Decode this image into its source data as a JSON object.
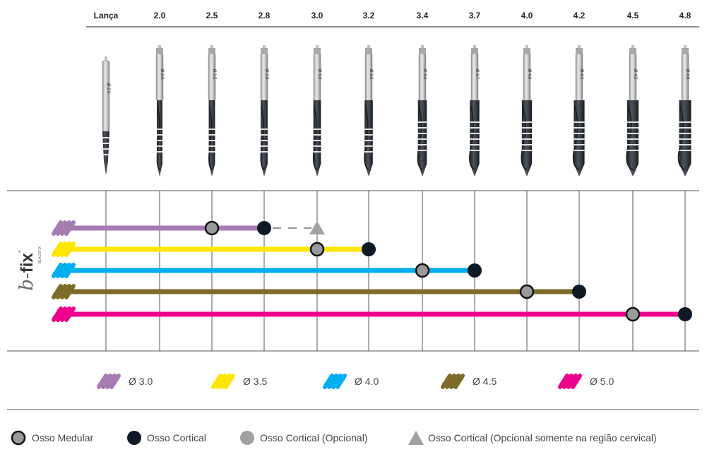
{
  "columns": [
    "Lança",
    "2.0",
    "2.5",
    "2.8",
    "3.0",
    "3.2",
    "3.4",
    "3.7",
    "4.0",
    "4.2",
    "4.5",
    "4.8"
  ],
  "drill_markings": [
    "Ø 2.0",
    "Ø 2.0",
    "Ø 2.5",
    "Ø 2.8",
    "Ø 3.0",
    "Ø 3.2",
    "Ø 3.4",
    "Ø 3.7",
    "Ø 4.0",
    "Ø 4.2",
    "Ø 4.5",
    "Ø 4.8"
  ],
  "brand": {
    "prefix": "b-",
    "name": "fix",
    "registered": "®",
    "sub": "BLACKFIX"
  },
  "sequences": [
    {
      "implant": "Ø 3.0",
      "color": "#a67bb2",
      "end_column": "2.8",
      "medular": "2.5",
      "cortical": "2.8",
      "cervical_optional": "3.0"
    },
    {
      "implant": "Ø 3.5",
      "color": "#ffe600",
      "end_column": "3.2",
      "medular": "3.0",
      "cortical": "3.2"
    },
    {
      "implant": "Ø 4.0",
      "color": "#00aeef",
      "end_column": "3.7",
      "medular": "3.4",
      "cortical": "3.7"
    },
    {
      "implant": "Ø 4.5",
      "color": "#7d6c28",
      "end_column": "4.2",
      "medular": "4.0",
      "cortical": "4.2"
    },
    {
      "implant": "Ø 5.0",
      "color": "#ec008c",
      "end_column": "4.8",
      "medular": "4.5",
      "cortical": "4.8"
    }
  ],
  "legend": {
    "osso_medular": "Osso Medular",
    "osso_cortical": "Osso Cortical",
    "osso_cortical_opcional": "Osso Cortical (Opcional)",
    "osso_cortical_cervical": "Osso Cortical (Opcional somente na região cervical)"
  },
  "colors": {
    "medular_fill": "#9a9a9a",
    "cortical_fill": "#0d1a26",
    "optional_fill": "#a0a0a0",
    "grid": "#555555"
  }
}
